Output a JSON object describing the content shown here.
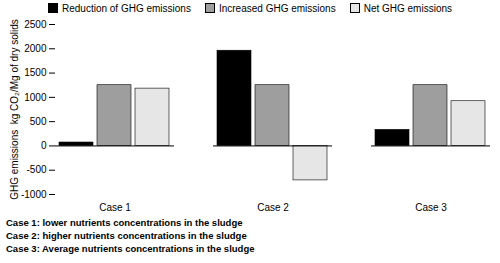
{
  "chart_data": {
    "type": "bar",
    "categories": [
      "Case 1",
      "Case 2",
      "Case 3"
    ],
    "series": [
      {
        "name": "Reduction of GHG emissions",
        "color": "#000000",
        "values": [
          70,
          1960,
          330
        ]
      },
      {
        "name": "Increased GHG emissions",
        "color": "#9e9e9e",
        "values": [
          1250,
          1250,
          1250
        ]
      },
      {
        "name": "Net GHG emissions",
        "color": "#e6e6e6",
        "values": [
          1180,
          -710,
          920
        ]
      }
    ],
    "ylabel": "GHG emissions  kg CO₂/Mg of dry solids",
    "ylim": [
      -1000,
      2500
    ],
    "yticks": [
      -1000,
      -500,
      0,
      500,
      1000,
      1500,
      2000,
      2500
    ],
    "legend": "top",
    "grid": false,
    "annotations": [
      "Case 1: lower nutrients concentrations in the sludge",
      "Case 2: higher nutrients concentrations in the sludge",
      "Case 3: Average  nutrients concentrations in the sludge"
    ]
  }
}
